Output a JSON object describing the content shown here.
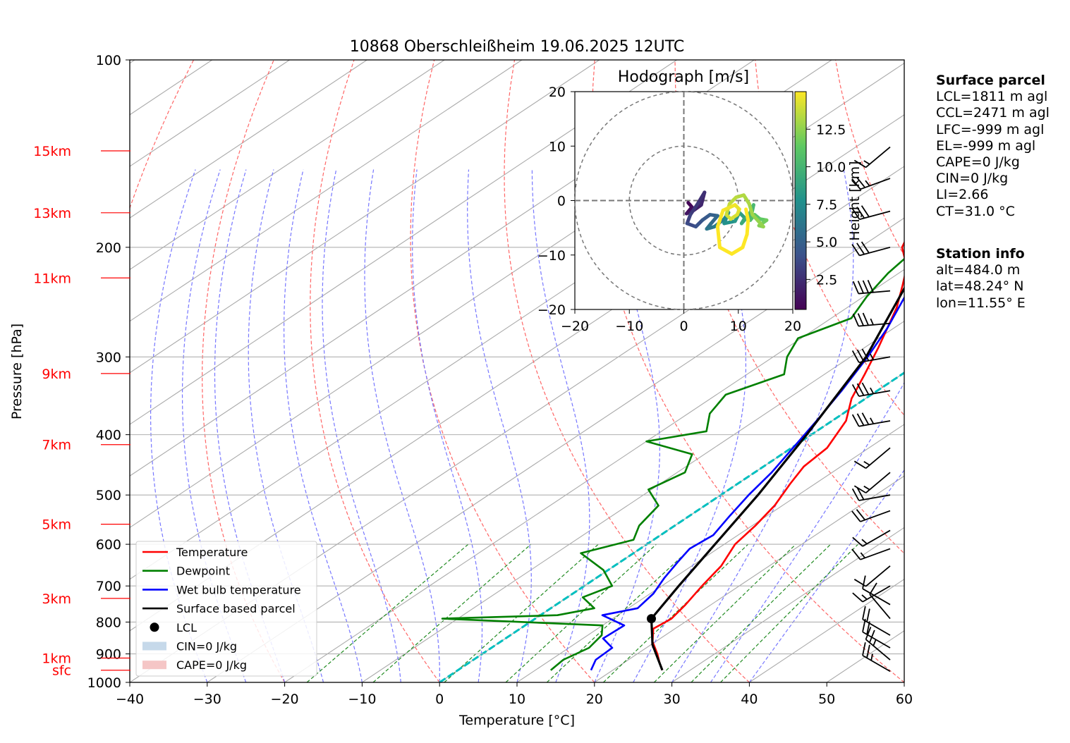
{
  "chart_data": [
    {
      "type": "line",
      "subtype": "skew-T log-P diagram",
      "title": "10868 Oberschleißheim 19.06.2025 12UTC",
      "xlabel": "Temperature [°C]",
      "ylabel": "Pressure [hPa]",
      "xlim": [
        -40,
        60
      ],
      "ylim": [
        1000,
        100
      ],
      "y_scale": "log",
      "grid": true,
      "x_ticks": [
        "−40",
        "−30",
        "−20",
        "−10",
        "0",
        "10",
        "20",
        "30",
        "40",
        "50",
        "60"
      ],
      "y_ticks": [
        "100",
        "200",
        "300",
        "400",
        "500",
        "600",
        "700",
        "800",
        "900",
        "1000"
      ],
      "height_labels": [
        {
          "label": "15km",
          "p": 140
        },
        {
          "label": "13km",
          "p": 176
        },
        {
          "label": "11km",
          "p": 224
        },
        {
          "label": "9km",
          "p": 319
        },
        {
          "label": "7km",
          "p": 415
        },
        {
          "label": "5km",
          "p": 557
        },
        {
          "label": "3km",
          "p": 733
        },
        {
          "label": "1km",
          "p": 914
        },
        {
          "label": "sfc",
          "p": 956
        }
      ],
      "legend_position": "lower-left",
      "legend": [
        {
          "label": "Temperature",
          "color": "#ff0000",
          "kind": "line"
        },
        {
          "label": "Dewpoint",
          "color": "#008000",
          "kind": "line"
        },
        {
          "label": "Wet bulb temperature",
          "color": "#0000ff",
          "kind": "line"
        },
        {
          "label": "Surface based parcel",
          "color": "#000000",
          "kind": "line"
        },
        {
          "label": "LCL",
          "color": "#000000",
          "kind": "dot"
        },
        {
          "label": "CIN=0 J/kg",
          "color": "#c6d9ea",
          "kind": "patch"
        },
        {
          "label": "CAPE=0 J/kg",
          "color": "#f5c6c6",
          "kind": "patch"
        }
      ],
      "series": [
        {
          "name": "Temperature",
          "color": "#ff0000",
          "points": [
            [
              26.4,
              956
            ],
            [
              24.6,
              930
            ],
            [
              22.6,
              900
            ],
            [
              19.6,
              860
            ],
            [
              17.2,
              820
            ],
            [
              17.6,
              790
            ],
            [
              16.7,
              750
            ],
            [
              15.2,
              700
            ],
            [
              13.8,
              650
            ],
            [
              11.4,
              600
            ],
            [
              10.4,
              560
            ],
            [
              9.0,
              520
            ],
            [
              6.8,
              480
            ],
            [
              5.2,
              450
            ],
            [
              4.6,
              420
            ],
            [
              1.8,
              380
            ],
            [
              -1.8,
              350
            ],
            [
              -4.8,
              320
            ],
            [
              -8.2,
              290
            ],
            [
              -10.8,
              270
            ],
            [
              -13.6,
              250
            ],
            [
              -17.2,
              230
            ],
            [
              -20.2,
              215
            ],
            [
              -24.6,
              200
            ],
            [
              -26.4,
              190
            ],
            [
              -26.6,
              180
            ],
            [
              -28.0,
              170
            ],
            [
              -29.2,
              160
            ],
            [
              -31.8,
              150
            ],
            [
              -32.4,
              145
            ],
            [
              -33.2,
              140
            ],
            [
              -34.8,
              137
            ]
          ]
        },
        {
          "name": "Dewpoint",
          "color": "#008000",
          "points": [
            [
              12.0,
              956
            ],
            [
              11.6,
              920
            ],
            [
              12.6,
              880
            ],
            [
              11.8,
              840
            ],
            [
              10.0,
              810
            ],
            [
              -12.0,
              790
            ],
            [
              2.2,
              780
            ],
            [
              5.6,
              760
            ],
            [
              2.0,
              730
            ],
            [
              3.6,
              700
            ],
            [
              -0.6,
              660
            ],
            [
              -6.8,
              620
            ],
            [
              -2.6,
              590
            ],
            [
              -4.6,
              560
            ],
            [
              -6.0,
              520
            ],
            [
              -10.4,
              490
            ],
            [
              -9.0,
              460
            ],
            [
              -11.6,
              430
            ],
            [
              -20.0,
              410
            ],
            [
              -14.2,
              395
            ],
            [
              -17.2,
              370
            ],
            [
              -18.8,
              345
            ],
            [
              -15.2,
              320
            ],
            [
              -18.2,
              300
            ],
            [
              -20.4,
              280
            ],
            [
              -17.4,
              260
            ],
            [
              -19.6,
              240
            ],
            [
              -21.4,
              220
            ],
            [
              -22.6,
              200
            ],
            [
              -23.4,
              180
            ],
            [
              -22.0,
              165
            ],
            [
              -27.0,
              155
            ],
            [
              -30.2,
              148
            ],
            [
              -34.6,
              140
            ],
            [
              -36.0,
              137
            ]
          ]
        },
        {
          "name": "Wet bulb temperature",
          "color": "#0000ff",
          "points": [
            [
              17.2,
              956
            ],
            [
              15.8,
              920
            ],
            [
              15.6,
              880
            ],
            [
              12.6,
              850
            ],
            [
              12.8,
              810
            ],
            [
              8.0,
              780
            ],
            [
              11.2,
              760
            ],
            [
              10.4,
              720
            ],
            [
              8.8,
              680
            ],
            [
              7.4,
              640
            ],
            [
              6.4,
              610
            ],
            [
              6.8,
              580
            ],
            [
              5.2,
              540
            ],
            [
              3.6,
              500
            ],
            [
              2.2,
              460
            ],
            [
              0.2,
              420
            ],
            [
              -2.0,
              380
            ],
            [
              -4.6,
              340
            ],
            [
              -7.8,
              300
            ],
            [
              -10.8,
              270
            ],
            [
              -14.0,
              245
            ],
            [
              -16.8,
              225
            ],
            [
              -21.4,
              205
            ],
            [
              -25.6,
              190
            ],
            [
              -26.8,
              180
            ],
            [
              -27.4,
              170
            ],
            [
              -30.0,
              160
            ],
            [
              -32.0,
              150
            ],
            [
              -32.6,
              145
            ],
            [
              -33.0,
              140
            ],
            [
              -34.8,
              137
            ]
          ]
        },
        {
          "name": "Surface based parcel",
          "color": "#000000",
          "points": [
            [
              26.4,
              956
            ],
            [
              20.2,
              870
            ],
            [
              15.0,
              790
            ],
            [
              12.2,
              700
            ],
            [
              8.8,
              600
            ],
            [
              4.8,
              500
            ],
            [
              -0.6,
              400
            ],
            [
              -8.0,
              300
            ],
            [
              -18.2,
              220
            ],
            [
              -26.2,
              180
            ],
            [
              -36.0,
              150
            ],
            [
              -42.0,
              138
            ]
          ]
        }
      ],
      "markers": [
        {
          "label": "LCL",
          "t": 15.0,
          "p": 790
        }
      ],
      "freezing_level_line": {
        "style": "cyan dashed",
        "t_at_1000": 0
      }
    },
    {
      "type": "line",
      "subtype": "hodograph",
      "title": "Hodograph [m/s]",
      "xlim": [
        -20,
        20
      ],
      "ylim": [
        -20,
        20
      ],
      "x_ticks": [
        "−20",
        "−10",
        "0",
        "10",
        "20"
      ],
      "y_ticks": [
        "20",
        "10",
        "0",
        "−10",
        "−20"
      ],
      "rings": [
        10,
        20
      ],
      "colorbar": {
        "label": "Height [km]",
        "ticks": [
          "2.5",
          "5.0",
          "7.5",
          "10.0",
          "12.5"
        ],
        "colormap": "viridis",
        "range": [
          0.5,
          15
        ]
      },
      "path": [
        [
          0.8,
          -0.4,
          0.5
        ],
        [
          1.5,
          -1.2,
          0.8
        ],
        [
          0.5,
          -2.4,
          1.2
        ],
        [
          1.8,
          -1.8,
          1.6
        ],
        [
          3.2,
          -0.8,
          2.0
        ],
        [
          3.8,
          1.5,
          2.4
        ],
        [
          2.6,
          -0.5,
          2.8
        ],
        [
          1.2,
          -2.6,
          3.2
        ],
        [
          0.6,
          -4.2,
          3.6
        ],
        [
          2.2,
          -4.8,
          4.0
        ],
        [
          3.4,
          -3.6,
          4.4
        ],
        [
          4.8,
          -2.6,
          4.8
        ],
        [
          6.2,
          -2.8,
          5.2
        ],
        [
          5.0,
          -4.2,
          5.6
        ],
        [
          4.2,
          -5.2,
          6.0
        ],
        [
          5.6,
          -4.8,
          6.4
        ],
        [
          7.4,
          -3.4,
          6.8
        ],
        [
          8.2,
          -2.2,
          7.2
        ],
        [
          7.4,
          -4.2,
          7.6
        ],
        [
          9.4,
          -3.8,
          8.0
        ],
        [
          10.2,
          -2.2,
          8.4
        ],
        [
          11.2,
          -3.2,
          8.8
        ],
        [
          10.6,
          -4.2,
          9.2
        ],
        [
          12.0,
          -2.6,
          9.6
        ],
        [
          12.8,
          -0.8,
          10.0
        ],
        [
          12.2,
          -3.6,
          10.4
        ],
        [
          13.0,
          -2.6,
          10.8
        ],
        [
          14.0,
          -3.4,
          11.2
        ],
        [
          15.2,
          -3.6,
          11.6
        ],
        [
          13.8,
          -4.6,
          12.0
        ],
        [
          14.6,
          -4.8,
          12.4
        ],
        [
          12.6,
          -2.6,
          12.8
        ],
        [
          12.0,
          -0.6,
          13.0
        ],
        [
          11.0,
          1.0,
          13.2
        ],
        [
          9.6,
          0.6,
          13.4
        ],
        [
          8.4,
          -0.6,
          13.6
        ],
        [
          7.8,
          -2.6,
          13.8
        ],
        [
          8.6,
          -3.4,
          14.0
        ],
        [
          9.8,
          -2.6,
          14.2
        ],
        [
          10.2,
          -1.6,
          14.4
        ],
        [
          9.4,
          -0.8,
          14.6
        ],
        [
          7.2,
          -1.8,
          14.8
        ],
        [
          6.2,
          -4.8,
          15.0
        ],
        [
          6.6,
          -8.6,
          15.2
        ],
        [
          8.8,
          -9.8,
          15.4
        ],
        [
          10.8,
          -8.6,
          15.6
        ],
        [
          11.6,
          -6.2,
          15.8
        ],
        [
          11.8,
          -3.6,
          16.0
        ],
        [
          11.4,
          -1.6,
          16.2
        ]
      ]
    }
  ],
  "surface_parcel": {
    "heading": "Surface parcel",
    "lines": [
      "LCL=1811 m agl",
      "CCL=2471 m agl",
      "LFC=-999 m agl",
      "EL=-999 m agl",
      "CAPE=0 J/kg",
      "CIN=0 J/kg",
      "LI=2.66",
      "CT=31.0 °C"
    ]
  },
  "station_info": {
    "heading": "Station info",
    "lines": [
      "alt=484.0 m",
      "lat=48.24° N",
      "lon=11.55° E"
    ]
  },
  "wind_barbs": [
    {
      "p": 960,
      "speed_kt": 25,
      "dir": 300
    },
    {
      "p": 920,
      "speed_kt": 25,
      "dir": 310
    },
    {
      "p": 880,
      "speed_kt": 20,
      "dir": 300
    },
    {
      "p": 840,
      "speed_kt": 20,
      "dir": 300
    },
    {
      "p": 790,
      "speed_kt": 10,
      "dir": 320
    },
    {
      "p": 750,
      "speed_kt": 10,
      "dir": 300
    },
    {
      "p": 700,
      "speed_kt": 15,
      "dir": 240
    },
    {
      "p": 650,
      "speed_kt": 10,
      "dir": 230
    },
    {
      "p": 610,
      "speed_kt": 15,
      "dir": 250
    },
    {
      "p": 570,
      "speed_kt": 15,
      "dir": 240
    },
    {
      "p": 530,
      "speed_kt": 20,
      "dir": 250
    },
    {
      "p": 500,
      "speed_kt": 20,
      "dir": 260
    },
    {
      "p": 460,
      "speed_kt": 15,
      "dir": 230
    },
    {
      "p": 420,
      "speed_kt": 15,
      "dir": 230
    },
    {
      "p": 380,
      "speed_kt": 35,
      "dir": 260
    },
    {
      "p": 340,
      "speed_kt": 35,
      "dir": 260
    },
    {
      "p": 300,
      "speed_kt": 35,
      "dir": 260
    },
    {
      "p": 265,
      "speed_kt": 35,
      "dir": 265
    },
    {
      "p": 235,
      "speed_kt": 40,
      "dir": 265
    },
    {
      "p": 200,
      "speed_kt": 30,
      "dir": 255
    },
    {
      "p": 175,
      "speed_kt": 30,
      "dir": 255
    },
    {
      "p": 155,
      "speed_kt": 25,
      "dir": 250
    },
    {
      "p": 138,
      "speed_kt": 15,
      "dir": 230
    }
  ]
}
